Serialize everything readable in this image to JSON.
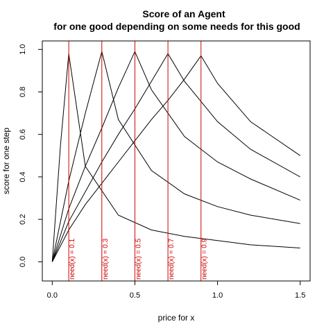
{
  "chart_data": {
    "type": "line",
    "title": "Score of an Agent",
    "subtitle": "for one good depending on some needs for this good",
    "xlabel": "price for x",
    "ylabel": "score for one step",
    "xlim": [
      -0.06,
      1.56
    ],
    "ylim": [
      -0.09,
      1.04
    ],
    "xticks": [
      0.0,
      0.5,
      1.0,
      1.5
    ],
    "xtick_labels": [
      "0.0",
      "0.5",
      "1.0",
      "1.5"
    ],
    "yticks": [
      0.0,
      0.2,
      0.4,
      0.6,
      0.8,
      1.0
    ],
    "ytick_labels": [
      "0.0",
      "0.2",
      "0.4",
      "0.6",
      "0.8",
      "1.0"
    ],
    "grid": false,
    "legend": "none",
    "line_color": "#000000",
    "marker_color": "#cc0000",
    "needs": [
      0.1,
      0.3,
      0.5,
      0.7,
      0.9
    ],
    "need_labels": [
      "need(x) = 0.1",
      "need(x) = 0.3",
      "need(x) = 0.5",
      "need(x) = 0.7",
      "need(x) = 0.9"
    ],
    "series": [
      {
        "x": [
          0,
          0.05,
          0.1,
          0.2,
          0.4,
          0.6,
          0.8,
          1.0,
          1.2,
          1.5
        ],
        "y": [
          0,
          0.55,
          0.98,
          0.45,
          0.22,
          0.15,
          0.12,
          0.1,
          0.08,
          0.065
        ]
      },
      {
        "x": [
          0,
          0.1,
          0.2,
          0.3,
          0.4,
          0.6,
          0.8,
          1.0,
          1.2,
          1.5
        ],
        "y": [
          0,
          0.38,
          0.7,
          0.99,
          0.67,
          0.43,
          0.32,
          0.26,
          0.22,
          0.18
        ]
      },
      {
        "x": [
          0,
          0.1,
          0.2,
          0.3,
          0.4,
          0.5,
          0.6,
          0.8,
          1.0,
          1.2,
          1.5
        ],
        "y": [
          0,
          0.25,
          0.45,
          0.63,
          0.82,
          0.99,
          0.81,
          0.59,
          0.47,
          0.39,
          0.29
        ]
      },
      {
        "x": [
          0,
          0.1,
          0.2,
          0.3,
          0.4,
          0.5,
          0.6,
          0.7,
          0.8,
          1.0,
          1.2,
          1.5
        ],
        "y": [
          0,
          0.19,
          0.33,
          0.47,
          0.6,
          0.72,
          0.85,
          0.98,
          0.85,
          0.66,
          0.53,
          0.4
        ]
      },
      {
        "x": [
          0,
          0.1,
          0.2,
          0.3,
          0.4,
          0.5,
          0.6,
          0.7,
          0.8,
          0.9,
          1.0,
          1.2,
          1.5
        ],
        "y": [
          0,
          0.15,
          0.27,
          0.37,
          0.47,
          0.57,
          0.67,
          0.76,
          0.86,
          0.97,
          0.84,
          0.66,
          0.5
        ]
      }
    ]
  }
}
